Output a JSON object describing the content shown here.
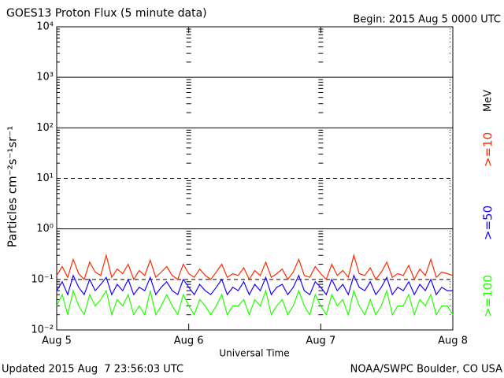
{
  "chart_data": {
    "type": "line",
    "title": "GOES13 Proton Flux (5 minute data)",
    "subtitle": "Begin: 2015 Aug 5 0000 UTC",
    "x_label": "Universal Time",
    "y_label": "Particles cm⁻²s⁻¹sr⁻¹",
    "legend_unit": "MeV",
    "footer_left": "Updated 2015 Aug  7 23:56:03 UTC",
    "footer_right": "NOAA/SWPC Boulder, CO USA",
    "log_y": true,
    "xlim": [
      0,
      72
    ],
    "xticks": [
      {
        "value": 0,
        "label": "Aug 5"
      },
      {
        "value": 24,
        "label": "Aug 6"
      },
      {
        "value": 48,
        "label": "Aug 7"
      },
      {
        "value": 72,
        "label": "Aug 8"
      }
    ],
    "ylim": [
      0.01,
      10000
    ],
    "yticks": [
      {
        "value": 0.01,
        "label": "10⁻²"
      },
      {
        "value": 0.1,
        "label": "10⁻¹"
      },
      {
        "value": 1,
        "label": "10⁰"
      },
      {
        "value": 10,
        "label": "10¹"
      },
      {
        "value": 100,
        "label": "10²"
      },
      {
        "value": 1000,
        "label": "10³"
      },
      {
        "value": 10000,
        "label": "10⁴"
      }
    ],
    "grid_dashed": [
      false,
      true,
      false,
      true,
      false,
      false,
      false
    ],
    "x": [
      0,
      1,
      2,
      3,
      4,
      5,
      6,
      7,
      8,
      9,
      10,
      11,
      12,
      13,
      14,
      15,
      16,
      17,
      18,
      19,
      20,
      21,
      22,
      23,
      24,
      25,
      26,
      27,
      28,
      29,
      30,
      31,
      32,
      33,
      34,
      35,
      36,
      37,
      38,
      39,
      40,
      41,
      42,
      43,
      44,
      45,
      46,
      47,
      48,
      49,
      50,
      51,
      52,
      53,
      54,
      55,
      56,
      57,
      58,
      59,
      60,
      61,
      62,
      63,
      64,
      65,
      66,
      67,
      68,
      69,
      70,
      71,
      72
    ],
    "series": [
      {
        "name": ">=10",
        "color": "#ff2a00",
        "values": [
          0.12,
          0.18,
          0.11,
          0.25,
          0.13,
          0.1,
          0.22,
          0.14,
          0.12,
          0.3,
          0.11,
          0.16,
          0.13,
          0.2,
          0.1,
          0.15,
          0.12,
          0.24,
          0.11,
          0.14,
          0.18,
          0.12,
          0.1,
          0.2,
          0.13,
          0.11,
          0.16,
          0.12,
          0.1,
          0.14,
          0.2,
          0.11,
          0.13,
          0.12,
          0.17,
          0.1,
          0.15,
          0.12,
          0.22,
          0.11,
          0.13,
          0.16,
          0.1,
          0.14,
          0.25,
          0.12,
          0.11,
          0.18,
          0.13,
          0.1,
          0.2,
          0.12,
          0.15,
          0.11,
          0.3,
          0.13,
          0.12,
          0.17,
          0.1,
          0.14,
          0.22,
          0.11,
          0.13,
          0.12,
          0.19,
          0.1,
          0.16,
          0.12,
          0.25,
          0.11,
          0.14,
          0.13,
          0.12
        ]
      },
      {
        "name": ">=50",
        "color": "#1a00ff",
        "values": [
          0.06,
          0.09,
          0.05,
          0.12,
          0.07,
          0.05,
          0.1,
          0.06,
          0.08,
          0.11,
          0.05,
          0.08,
          0.06,
          0.1,
          0.05,
          0.07,
          0.06,
          0.11,
          0.05,
          0.07,
          0.09,
          0.06,
          0.05,
          0.1,
          0.07,
          0.05,
          0.08,
          0.06,
          0.05,
          0.07,
          0.1,
          0.05,
          0.07,
          0.06,
          0.09,
          0.05,
          0.08,
          0.06,
          0.11,
          0.05,
          0.07,
          0.08,
          0.05,
          0.07,
          0.12,
          0.06,
          0.05,
          0.09,
          0.07,
          0.05,
          0.1,
          0.06,
          0.08,
          0.05,
          0.12,
          0.07,
          0.06,
          0.09,
          0.05,
          0.07,
          0.11,
          0.05,
          0.07,
          0.06,
          0.09,
          0.05,
          0.08,
          0.06,
          0.1,
          0.05,
          0.07,
          0.06,
          0.06
        ]
      },
      {
        "name": ">=100",
        "color": "#22ff00",
        "values": [
          0.03,
          0.05,
          0.02,
          0.06,
          0.03,
          0.02,
          0.05,
          0.03,
          0.04,
          0.06,
          0.02,
          0.04,
          0.03,
          0.05,
          0.02,
          0.03,
          0.02,
          0.06,
          0.02,
          0.03,
          0.05,
          0.03,
          0.02,
          0.05,
          0.03,
          0.02,
          0.04,
          0.03,
          0.02,
          0.03,
          0.05,
          0.02,
          0.03,
          0.03,
          0.04,
          0.02,
          0.04,
          0.03,
          0.06,
          0.02,
          0.03,
          0.04,
          0.02,
          0.03,
          0.06,
          0.03,
          0.02,
          0.05,
          0.03,
          0.02,
          0.05,
          0.03,
          0.04,
          0.02,
          0.06,
          0.03,
          0.02,
          0.04,
          0.02,
          0.03,
          0.06,
          0.02,
          0.03,
          0.03,
          0.05,
          0.02,
          0.04,
          0.03,
          0.05,
          0.02,
          0.03,
          0.03,
          0.02
        ]
      }
    ]
  }
}
